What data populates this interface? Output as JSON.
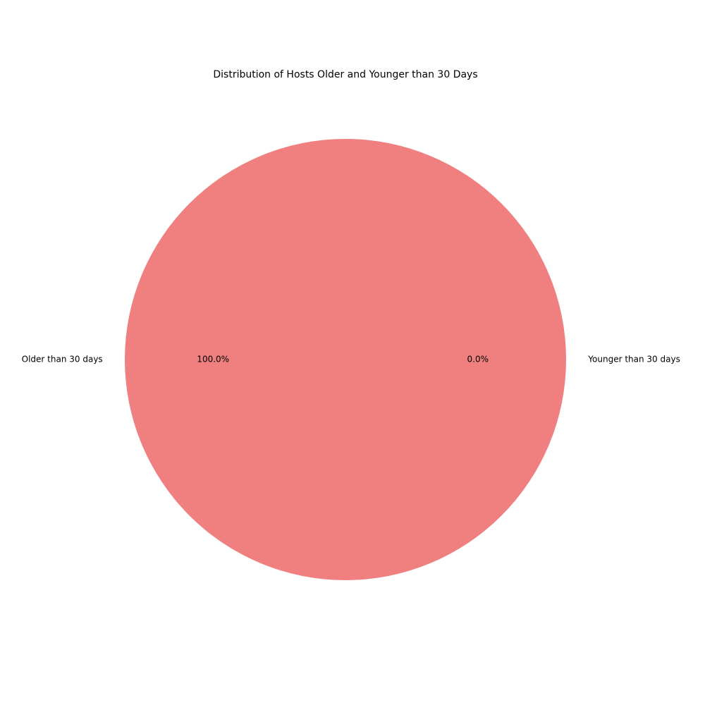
{
  "chart_data": {
    "type": "pie",
    "title": "Distribution of Hosts Older and Younger than 30 Days",
    "labels": [
      "Older than 30 days",
      "Younger than 30 days"
    ],
    "values": [
      100.0,
      0.0
    ],
    "percent_labels": [
      "100.0%",
      "0.0%"
    ],
    "colors": [
      "#f08080",
      "#66b3ff"
    ],
    "legend": "none"
  }
}
